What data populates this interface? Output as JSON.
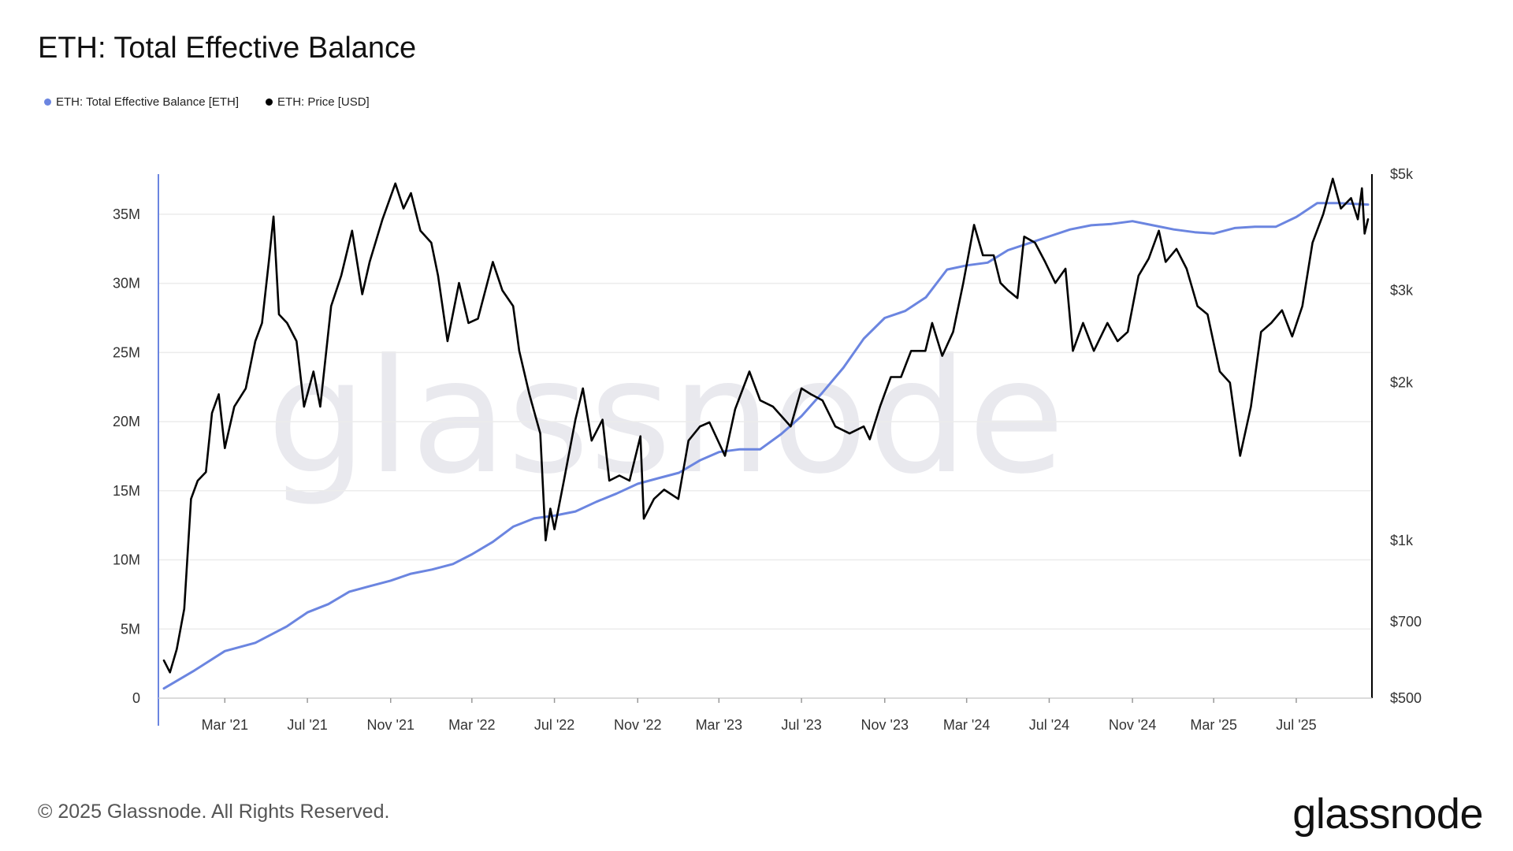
{
  "title": "ETH: Total Effective Balance",
  "legend": [
    {
      "label": "ETH: Total Effective Balance [ETH]",
      "color": "#6b85e0"
    },
    {
      "label": "ETH: Price [USD]",
      "color": "#000000"
    }
  ],
  "footer": "© 2025 Glassnode. All Rights Reserved.",
  "brand": "glassnode",
  "watermark": "glassnode",
  "chart_data": {
    "type": "line",
    "title": "ETH: Total Effective Balance",
    "x_ticks": [
      "Mar '21",
      "Jul '21",
      "Nov '21",
      "Mar '22",
      "Jul '22",
      "Nov '22",
      "Mar '23",
      "Jul '23",
      "Nov '23",
      "Mar '24",
      "Jul '24",
      "Nov '24",
      "Mar '25",
      "Jul '25"
    ],
    "y_left": {
      "ticks": [
        "0",
        "5M",
        "10M",
        "15M",
        "20M",
        "25M",
        "30M",
        "35M"
      ],
      "values": [
        0,
        5,
        10,
        15,
        20,
        25,
        30,
        35
      ],
      "unit": "M ETH",
      "range": [
        0,
        37.9
      ]
    },
    "y_right": {
      "ticks": [
        "$500",
        "$700",
        "$1k",
        "$2k",
        "$3k",
        "$5k"
      ],
      "values": [
        500,
        700,
        1000,
        2000,
        3000,
        5000
      ],
      "scale": "log",
      "range": [
        500,
        5000
      ]
    },
    "grid": true,
    "series": [
      {
        "name": "ETH: Total Effective Balance [ETH]",
        "axis": "left",
        "color": "#6b85e0",
        "points": [
          [
            "2020-12-01",
            0.7
          ],
          [
            "2021-01-15",
            2.0
          ],
          [
            "2021-03-01",
            3.4
          ],
          [
            "2021-04-15",
            4.0
          ],
          [
            "2021-06-01",
            5.2
          ],
          [
            "2021-07-01",
            6.2
          ],
          [
            "2021-08-01",
            6.8
          ],
          [
            "2021-09-01",
            7.7
          ],
          [
            "2021-10-01",
            8.1
          ],
          [
            "2021-11-01",
            8.5
          ],
          [
            "2021-12-01",
            9.0
          ],
          [
            "2022-01-01",
            9.3
          ],
          [
            "2022-02-01",
            9.7
          ],
          [
            "2022-03-01",
            10.4
          ],
          [
            "2022-04-01",
            11.3
          ],
          [
            "2022-05-01",
            12.4
          ],
          [
            "2022-06-01",
            13.0
          ],
          [
            "2022-07-01",
            13.2
          ],
          [
            "2022-08-01",
            13.5
          ],
          [
            "2022-09-01",
            14.2
          ],
          [
            "2022-10-01",
            14.8
          ],
          [
            "2022-11-01",
            15.5
          ],
          [
            "2022-12-01",
            15.9
          ],
          [
            "2023-01-01",
            16.3
          ],
          [
            "2023-02-01",
            17.2
          ],
          [
            "2023-03-01",
            17.8
          ],
          [
            "2023-04-01",
            18.0
          ],
          [
            "2023-05-01",
            18.0
          ],
          [
            "2023-06-01",
            19.1
          ],
          [
            "2023-07-01",
            20.4
          ],
          [
            "2023-08-01",
            22.1
          ],
          [
            "2023-09-01",
            23.9
          ],
          [
            "2023-10-01",
            26.0
          ],
          [
            "2023-11-01",
            27.5
          ],
          [
            "2023-12-01",
            28.0
          ],
          [
            "2024-01-01",
            29.0
          ],
          [
            "2024-02-01",
            31.0
          ],
          [
            "2024-03-01",
            31.3
          ],
          [
            "2024-04-01",
            31.5
          ],
          [
            "2024-05-01",
            32.4
          ],
          [
            "2024-06-01",
            32.9
          ],
          [
            "2024-07-01",
            33.4
          ],
          [
            "2024-08-01",
            33.9
          ],
          [
            "2024-09-01",
            34.2
          ],
          [
            "2024-10-01",
            34.3
          ],
          [
            "2024-11-01",
            34.5
          ],
          [
            "2024-12-01",
            34.2
          ],
          [
            "2025-01-01",
            33.9
          ],
          [
            "2025-02-01",
            33.7
          ],
          [
            "2025-03-01",
            33.6
          ],
          [
            "2025-04-01",
            34.0
          ],
          [
            "2025-05-01",
            34.1
          ],
          [
            "2025-06-01",
            34.1
          ],
          [
            "2025-07-01",
            34.8
          ],
          [
            "2025-08-01",
            35.8
          ],
          [
            "2025-09-01",
            35.8
          ],
          [
            "2025-10-15",
            35.7
          ]
        ]
      },
      {
        "name": "ETH: Price [USD]",
        "axis": "right",
        "color": "#000000",
        "points": [
          [
            "2020-12-01",
            590
          ],
          [
            "2020-12-10",
            560
          ],
          [
            "2020-12-20",
            620
          ],
          [
            "2020-12-31",
            740
          ],
          [
            "2021-01-10",
            1200
          ],
          [
            "2021-01-20",
            1300
          ],
          [
            "2021-02-01",
            1350
          ],
          [
            "2021-02-10",
            1750
          ],
          [
            "2021-02-20",
            1900
          ],
          [
            "2021-03-01",
            1500
          ],
          [
            "2021-03-15",
            1800
          ],
          [
            "2021-04-01",
            1950
          ],
          [
            "2021-04-15",
            2400
          ],
          [
            "2021-04-25",
            2600
          ],
          [
            "2021-05-05",
            3400
          ],
          [
            "2021-05-12",
            4150
          ],
          [
            "2021-05-20",
            2700
          ],
          [
            "2021-06-01",
            2600
          ],
          [
            "2021-06-15",
            2400
          ],
          [
            "2021-06-26",
            1800
          ],
          [
            "2021-07-10",
            2100
          ],
          [
            "2021-07-20",
            1800
          ],
          [
            "2021-08-05",
            2800
          ],
          [
            "2021-08-20",
            3200
          ],
          [
            "2021-09-05",
            3900
          ],
          [
            "2021-09-20",
            2950
          ],
          [
            "2021-10-01",
            3400
          ],
          [
            "2021-10-20",
            4100
          ],
          [
            "2021-11-08",
            4800
          ],
          [
            "2021-11-20",
            4300
          ],
          [
            "2021-12-01",
            4600
          ],
          [
            "2021-12-15",
            3900
          ],
          [
            "2021-12-31",
            3700
          ],
          [
            "2022-01-10",
            3200
          ],
          [
            "2022-01-24",
            2400
          ],
          [
            "2022-02-10",
            3100
          ],
          [
            "2022-02-24",
            2600
          ],
          [
            "2022-03-10",
            2650
          ],
          [
            "2022-04-01",
            3400
          ],
          [
            "2022-04-15",
            3000
          ],
          [
            "2022-05-01",
            2800
          ],
          [
            "2022-05-10",
            2300
          ],
          [
            "2022-05-25",
            1900
          ],
          [
            "2022-06-10",
            1600
          ],
          [
            "2022-06-18",
            1000
          ],
          [
            "2022-06-25",
            1150
          ],
          [
            "2022-07-01",
            1050
          ],
          [
            "2022-07-15",
            1300
          ],
          [
            "2022-08-01",
            1700
          ],
          [
            "2022-08-12",
            1950
          ],
          [
            "2022-08-25",
            1550
          ],
          [
            "2022-09-10",
            1700
          ],
          [
            "2022-09-20",
            1300
          ],
          [
            "2022-10-05",
            1330
          ],
          [
            "2022-10-20",
            1300
          ],
          [
            "2022-11-05",
            1580
          ],
          [
            "2022-11-10",
            1100
          ],
          [
            "2022-11-25",
            1200
          ],
          [
            "2022-12-10",
            1250
          ],
          [
            "2022-12-31",
            1200
          ],
          [
            "2023-01-15",
            1550
          ],
          [
            "2023-02-01",
            1650
          ],
          [
            "2023-02-15",
            1680
          ],
          [
            "2023-03-10",
            1450
          ],
          [
            "2023-03-25",
            1780
          ],
          [
            "2023-04-15",
            2100
          ],
          [
            "2023-05-01",
            1850
          ],
          [
            "2023-05-20",
            1800
          ],
          [
            "2023-06-15",
            1650
          ],
          [
            "2023-07-01",
            1950
          ],
          [
            "2023-07-15",
            1900
          ],
          [
            "2023-08-01",
            1850
          ],
          [
            "2023-08-20",
            1650
          ],
          [
            "2023-09-10",
            1600
          ],
          [
            "2023-10-01",
            1650
          ],
          [
            "2023-10-10",
            1560
          ],
          [
            "2023-10-25",
            1800
          ],
          [
            "2023-11-10",
            2050
          ],
          [
            "2023-11-25",
            2050
          ],
          [
            "2023-12-10",
            2300
          ],
          [
            "2023-12-31",
            2300
          ],
          [
            "2024-01-10",
            2600
          ],
          [
            "2024-01-25",
            2250
          ],
          [
            "2024-02-10",
            2500
          ],
          [
            "2024-02-25",
            3100
          ],
          [
            "2024-03-12",
            4000
          ],
          [
            "2024-03-25",
            3500
          ],
          [
            "2024-04-10",
            3500
          ],
          [
            "2024-04-20",
            3100
          ],
          [
            "2024-05-01",
            3000
          ],
          [
            "2024-05-15",
            2900
          ],
          [
            "2024-05-25",
            3800
          ],
          [
            "2024-06-10",
            3700
          ],
          [
            "2024-06-25",
            3400
          ],
          [
            "2024-07-10",
            3100
          ],
          [
            "2024-07-25",
            3300
          ],
          [
            "2024-08-05",
            2300
          ],
          [
            "2024-08-20",
            2600
          ],
          [
            "2024-09-05",
            2300
          ],
          [
            "2024-09-25",
            2600
          ],
          [
            "2024-10-10",
            2400
          ],
          [
            "2024-10-25",
            2500
          ],
          [
            "2024-11-10",
            3200
          ],
          [
            "2024-11-25",
            3450
          ],
          [
            "2024-12-10",
            3900
          ],
          [
            "2024-12-20",
            3400
          ],
          [
            "2025-01-05",
            3600
          ],
          [
            "2025-01-20",
            3300
          ],
          [
            "2025-02-05",
            2800
          ],
          [
            "2025-02-20",
            2700
          ],
          [
            "2025-03-10",
            2100
          ],
          [
            "2025-03-25",
            2000
          ],
          [
            "2025-04-09",
            1450
          ],
          [
            "2025-04-25",
            1800
          ],
          [
            "2025-05-10",
            2500
          ],
          [
            "2025-05-25",
            2600
          ],
          [
            "2025-06-10",
            2750
          ],
          [
            "2025-06-25",
            2450
          ],
          [
            "2025-07-10",
            2800
          ],
          [
            "2025-07-25",
            3700
          ],
          [
            "2025-08-10",
            4200
          ],
          [
            "2025-08-24",
            4900
          ],
          [
            "2025-09-05",
            4300
          ],
          [
            "2025-09-20",
            4500
          ],
          [
            "2025-09-30",
            4100
          ],
          [
            "2025-10-06",
            4700
          ],
          [
            "2025-10-10",
            3850
          ],
          [
            "2025-10-15",
            4100
          ]
        ]
      }
    ]
  }
}
